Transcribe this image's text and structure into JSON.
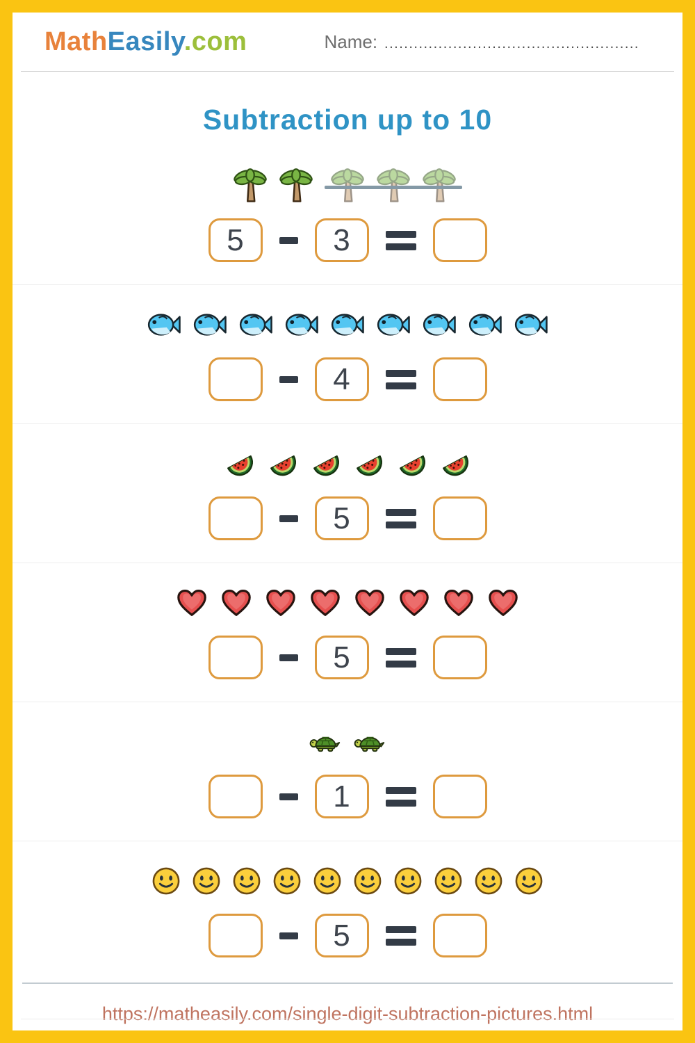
{
  "colors": {
    "page_border": "#FAC412",
    "title": "#2F93C5",
    "logo_math": "#E8823B",
    "logo_easily": "#3787BE",
    "logo_com": "#9CBF3B",
    "box_border": "#DE9A3E",
    "operator": "#333B46",
    "strike_line": "#8499A6",
    "footer_link": "#BF735F"
  },
  "header": {
    "logo": {
      "math": "Math",
      "easily": "Easily",
      "com": ".com"
    },
    "name_label": "Name:",
    "name_dots": "...................................................."
  },
  "title": "Subtraction up to 10",
  "problems": [
    {
      "icon": "palm-tree",
      "count": 5,
      "struck": 3,
      "minuend": "5",
      "subtrahend": "3",
      "answer": ""
    },
    {
      "icon": "fish",
      "count": 9,
      "struck": 0,
      "minuend": "",
      "subtrahend": "4",
      "answer": ""
    },
    {
      "icon": "watermelon",
      "count": 6,
      "struck": 0,
      "minuend": "",
      "subtrahend": "5",
      "answer": ""
    },
    {
      "icon": "heart",
      "count": 8,
      "struck": 0,
      "minuend": "",
      "subtrahend": "5",
      "answer": ""
    },
    {
      "icon": "turtle",
      "count": 2,
      "struck": 0,
      "minuend": "",
      "subtrahend": "1",
      "answer": ""
    },
    {
      "icon": "smiley",
      "count": 10,
      "struck": 0,
      "minuend": "",
      "subtrahend": "5",
      "answer": ""
    }
  ],
  "footer": {
    "url": "https://matheasily.com/single-digit-subtraction-pictures.html"
  }
}
